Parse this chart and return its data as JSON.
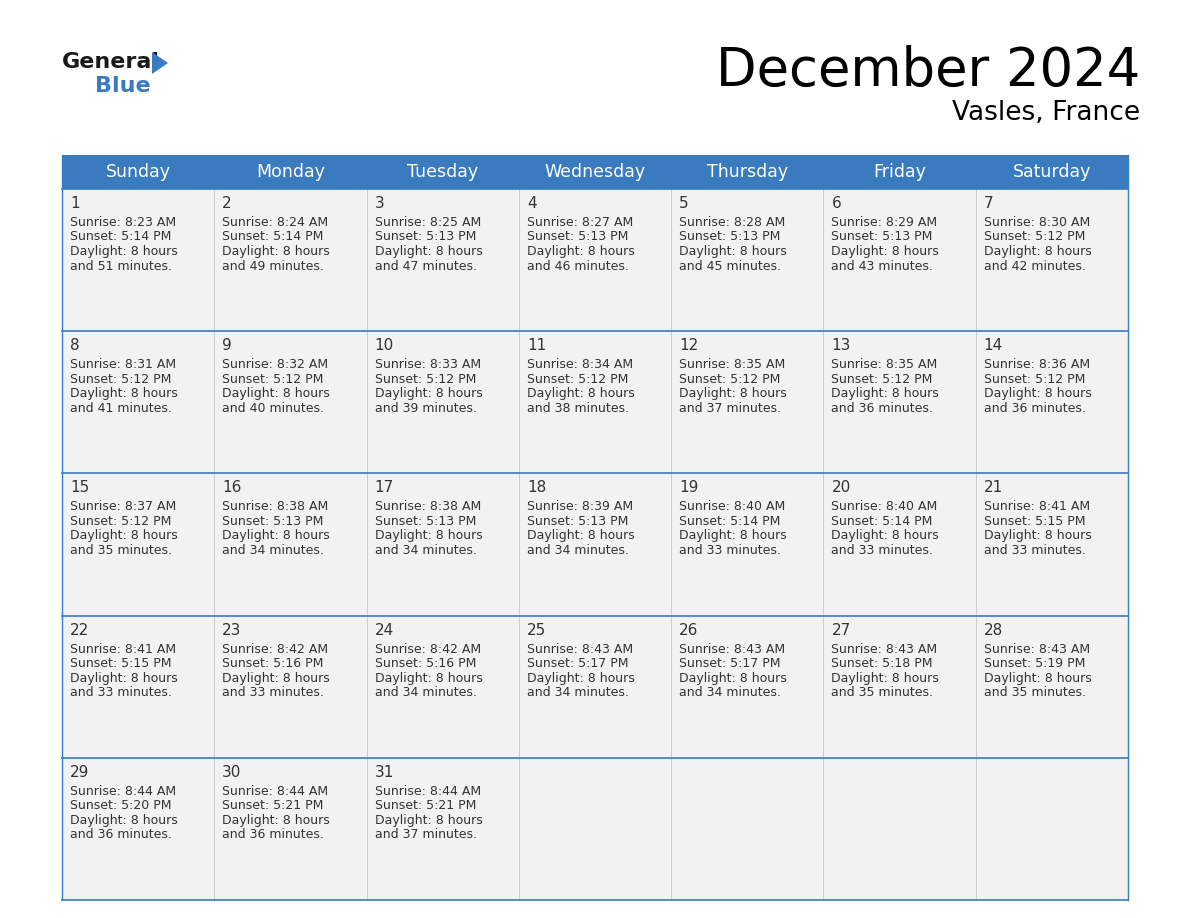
{
  "title": "December 2024",
  "subtitle": "Vasles, France",
  "header_color": "#3a7abf",
  "header_text_color": "#ffffff",
  "cell_bg_color": "#f2f2f2",
  "text_color": "#333333",
  "border_color": "#3a7abf",
  "days_of_week": [
    "Sunday",
    "Monday",
    "Tuesday",
    "Wednesday",
    "Thursday",
    "Friday",
    "Saturday"
  ],
  "calendar": [
    [
      {
        "day": 1,
        "sunrise": "8:23 AM",
        "sunset": "5:14 PM",
        "dl1": "8 hours",
        "dl2": "and 51 minutes."
      },
      {
        "day": 2,
        "sunrise": "8:24 AM",
        "sunset": "5:14 PM",
        "dl1": "8 hours",
        "dl2": "and 49 minutes."
      },
      {
        "day": 3,
        "sunrise": "8:25 AM",
        "sunset": "5:13 PM",
        "dl1": "8 hours",
        "dl2": "and 47 minutes."
      },
      {
        "day": 4,
        "sunrise": "8:27 AM",
        "sunset": "5:13 PM",
        "dl1": "8 hours",
        "dl2": "and 46 minutes."
      },
      {
        "day": 5,
        "sunrise": "8:28 AM",
        "sunset": "5:13 PM",
        "dl1": "8 hours",
        "dl2": "and 45 minutes."
      },
      {
        "day": 6,
        "sunrise": "8:29 AM",
        "sunset": "5:13 PM",
        "dl1": "8 hours",
        "dl2": "and 43 minutes."
      },
      {
        "day": 7,
        "sunrise": "8:30 AM",
        "sunset": "5:12 PM",
        "dl1": "8 hours",
        "dl2": "and 42 minutes."
      }
    ],
    [
      {
        "day": 8,
        "sunrise": "8:31 AM",
        "sunset": "5:12 PM",
        "dl1": "8 hours",
        "dl2": "and 41 minutes."
      },
      {
        "day": 9,
        "sunrise": "8:32 AM",
        "sunset": "5:12 PM",
        "dl1": "8 hours",
        "dl2": "and 40 minutes."
      },
      {
        "day": 10,
        "sunrise": "8:33 AM",
        "sunset": "5:12 PM",
        "dl1": "8 hours",
        "dl2": "and 39 minutes."
      },
      {
        "day": 11,
        "sunrise": "8:34 AM",
        "sunset": "5:12 PM",
        "dl1": "8 hours",
        "dl2": "and 38 minutes."
      },
      {
        "day": 12,
        "sunrise": "8:35 AM",
        "sunset": "5:12 PM",
        "dl1": "8 hours",
        "dl2": "and 37 minutes."
      },
      {
        "day": 13,
        "sunrise": "8:35 AM",
        "sunset": "5:12 PM",
        "dl1": "8 hours",
        "dl2": "and 36 minutes."
      },
      {
        "day": 14,
        "sunrise": "8:36 AM",
        "sunset": "5:12 PM",
        "dl1": "8 hours",
        "dl2": "and 36 minutes."
      }
    ],
    [
      {
        "day": 15,
        "sunrise": "8:37 AM",
        "sunset": "5:12 PM",
        "dl1": "8 hours",
        "dl2": "and 35 minutes."
      },
      {
        "day": 16,
        "sunrise": "8:38 AM",
        "sunset": "5:13 PM",
        "dl1": "8 hours",
        "dl2": "and 34 minutes."
      },
      {
        "day": 17,
        "sunrise": "8:38 AM",
        "sunset": "5:13 PM",
        "dl1": "8 hours",
        "dl2": "and 34 minutes."
      },
      {
        "day": 18,
        "sunrise": "8:39 AM",
        "sunset": "5:13 PM",
        "dl1": "8 hours",
        "dl2": "and 34 minutes."
      },
      {
        "day": 19,
        "sunrise": "8:40 AM",
        "sunset": "5:14 PM",
        "dl1": "8 hours",
        "dl2": "and 33 minutes."
      },
      {
        "day": 20,
        "sunrise": "8:40 AM",
        "sunset": "5:14 PM",
        "dl1": "8 hours",
        "dl2": "and 33 minutes."
      },
      {
        "day": 21,
        "sunrise": "8:41 AM",
        "sunset": "5:15 PM",
        "dl1": "8 hours",
        "dl2": "and 33 minutes."
      }
    ],
    [
      {
        "day": 22,
        "sunrise": "8:41 AM",
        "sunset": "5:15 PM",
        "dl1": "8 hours",
        "dl2": "and 33 minutes."
      },
      {
        "day": 23,
        "sunrise": "8:42 AM",
        "sunset": "5:16 PM",
        "dl1": "8 hours",
        "dl2": "and 33 minutes."
      },
      {
        "day": 24,
        "sunrise": "8:42 AM",
        "sunset": "5:16 PM",
        "dl1": "8 hours",
        "dl2": "and 34 minutes."
      },
      {
        "day": 25,
        "sunrise": "8:43 AM",
        "sunset": "5:17 PM",
        "dl1": "8 hours",
        "dl2": "and 34 minutes."
      },
      {
        "day": 26,
        "sunrise": "8:43 AM",
        "sunset": "5:17 PM",
        "dl1": "8 hours",
        "dl2": "and 34 minutes."
      },
      {
        "day": 27,
        "sunrise": "8:43 AM",
        "sunset": "5:18 PM",
        "dl1": "8 hours",
        "dl2": "and 35 minutes."
      },
      {
        "day": 28,
        "sunrise": "8:43 AM",
        "sunset": "5:19 PM",
        "dl1": "8 hours",
        "dl2": "and 35 minutes."
      }
    ],
    [
      {
        "day": 29,
        "sunrise": "8:44 AM",
        "sunset": "5:20 PM",
        "dl1": "8 hours",
        "dl2": "and 36 minutes."
      },
      {
        "day": 30,
        "sunrise": "8:44 AM",
        "sunset": "5:21 PM",
        "dl1": "8 hours",
        "dl2": "and 36 minutes."
      },
      {
        "day": 31,
        "sunrise": "8:44 AM",
        "sunset": "5:21 PM",
        "dl1": "8 hours",
        "dl2": "and 37 minutes."
      },
      null,
      null,
      null,
      null
    ]
  ]
}
